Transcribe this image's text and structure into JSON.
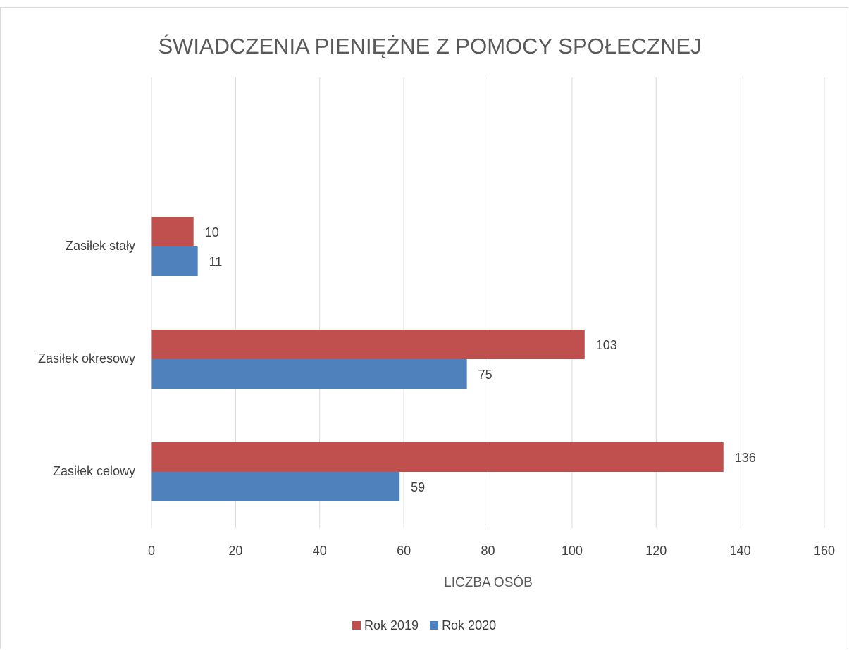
{
  "chart_data": {
    "type": "bar",
    "orientation": "horizontal",
    "title": "ŚWIADCZENIA PIENIĘŻNE Z POMOCY SPOŁECZNEJ",
    "x_label": "LICZBA OSÓB",
    "categories": [
      "Zasiłek stały",
      "Zasiłek okresowy",
      "Zasiłek celowy"
    ],
    "series": [
      {
        "name": "Rok 2019",
        "color": "#c0504d",
        "values": [
          10,
          103,
          136
        ]
      },
      {
        "name": "Rok 2020",
        "color": "#4f81bd",
        "values": [
          11,
          75,
          59
        ]
      }
    ],
    "xlim": [
      0,
      160
    ],
    "xticks": [
      0,
      20,
      40,
      60,
      80,
      100,
      120,
      140,
      160
    ],
    "grid": true,
    "legend": "bottom"
  }
}
